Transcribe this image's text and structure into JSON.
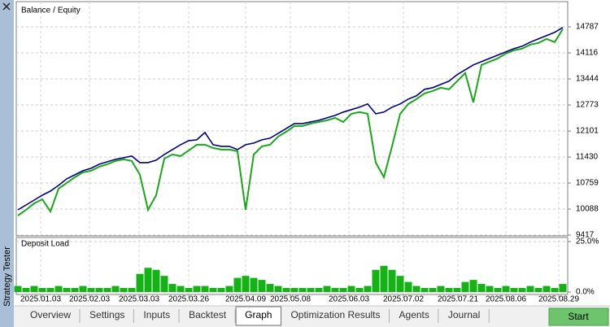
{
  "chart_data": [
    {
      "type": "line",
      "title": "Balance / Equity",
      "legend_separator": "/",
      "series": [
        {
          "name": "Balance",
          "color": "#000080",
          "values": [
            10068,
            10194,
            10320,
            10446,
            10551,
            10698,
            10866,
            10971,
            11076,
            11139,
            11244,
            11307,
            11370,
            11412,
            11454,
            11286,
            11286,
            11349,
            11496,
            11622,
            11748,
            11853,
            11874,
            12063,
            11748,
            11706,
            11706,
            11622,
            11748,
            11790,
            11874,
            11916,
            12042,
            12168,
            12294,
            12294,
            12336,
            12378,
            12441,
            12504,
            12588,
            12651,
            12714,
            12798,
            12546,
            12588,
            12714,
            12798,
            12924,
            13008,
            13176,
            13218,
            13302,
            13386,
            13554,
            13680,
            13806,
            13890,
            13974,
            14058,
            14142,
            14226,
            14289,
            14394,
            14478,
            14562,
            14646,
            14772
          ]
        },
        {
          "name": "Equity",
          "color": "#1aa81a",
          "values": [
            9921,
            10068,
            10236,
            10341,
            10026,
            10614,
            10761,
            10908,
            11034,
            11076,
            11181,
            11244,
            11328,
            11370,
            11328,
            10971,
            10068,
            10446,
            11391,
            11496,
            11454,
            11601,
            11748,
            11748,
            11664,
            11622,
            11622,
            11580,
            10068,
            11496,
            11706,
            11748,
            11958,
            12084,
            12231,
            12231,
            12294,
            12336,
            12378,
            12441,
            12336,
            12546,
            12588,
            12546,
            11286,
            10908,
            11706,
            12546,
            12798,
            12924,
            13071,
            13134,
            13218,
            13176,
            13386,
            13596,
            12840,
            13806,
            13890,
            13974,
            14100,
            14184,
            14226,
            14331,
            14373,
            14478,
            14394,
            14730
          ]
        }
      ],
      "xlim": [
        0,
        67.6
      ],
      "ylim": [
        9417,
        15396
      ],
      "yticks": [
        9417,
        10088,
        10759,
        11430,
        12101,
        12773,
        13444,
        14116,
        14787
      ],
      "grid": true
    },
    {
      "type": "bar",
      "title": "Deposit Load",
      "color": "#14b214",
      "values": [
        3,
        2,
        3,
        2,
        2,
        3,
        2,
        2,
        3,
        2,
        2,
        2,
        3,
        2,
        2,
        9,
        12,
        11,
        8,
        4,
        3,
        2,
        3,
        3,
        2,
        2,
        3,
        7,
        8,
        7,
        6,
        4,
        3,
        2,
        2,
        2,
        2,
        2,
        3,
        2,
        2,
        3,
        2,
        3,
        11,
        13,
        11,
        8,
        5,
        3,
        2,
        2,
        3,
        2,
        2,
        5,
        6,
        4,
        3,
        2,
        3,
        2,
        2,
        3,
        2,
        3,
        2,
        4
      ],
      "xlim": [
        0,
        67.6
      ],
      "ylim": [
        0,
        25
      ],
      "yticks": [
        {
          "value": 25,
          "label": "25.0%"
        },
        {
          "value": 0,
          "label": "0.0%"
        }
      ],
      "xticks": [
        {
          "value": 2.8,
          "label": "2025.01.03"
        },
        {
          "value": 8.8,
          "label": "2025.02.03"
        },
        {
          "value": 14.9,
          "label": "2025.03.03"
        },
        {
          "value": 21,
          "label": "2025.03.26"
        },
        {
          "value": 28,
          "label": "2025.04.09"
        },
        {
          "value": 33.5,
          "label": "2025.05.08"
        },
        {
          "value": 40.7,
          "label": "2025.06.03"
        },
        {
          "value": 47.4,
          "label": "2025.07.02"
        },
        {
          "value": 54.1,
          "label": "2025.07.21"
        },
        {
          "value": 60,
          "label": "2025.08.06"
        },
        {
          "value": 66.5,
          "label": "2025.08.29"
        }
      ],
      "grid": true
    }
  ],
  "sidebar": {
    "title": "Strategy Tester"
  },
  "tabs": [
    {
      "label": "Overview",
      "active": false
    },
    {
      "label": "Settings",
      "active": false
    },
    {
      "label": "Inputs",
      "active": false
    },
    {
      "label": "Backtest",
      "active": false
    },
    {
      "label": "Graph",
      "active": true
    },
    {
      "label": "Optimization Results",
      "active": false
    },
    {
      "label": "Agents",
      "active": false
    },
    {
      "label": "Journal",
      "active": false
    }
  ],
  "start_button": "Start"
}
